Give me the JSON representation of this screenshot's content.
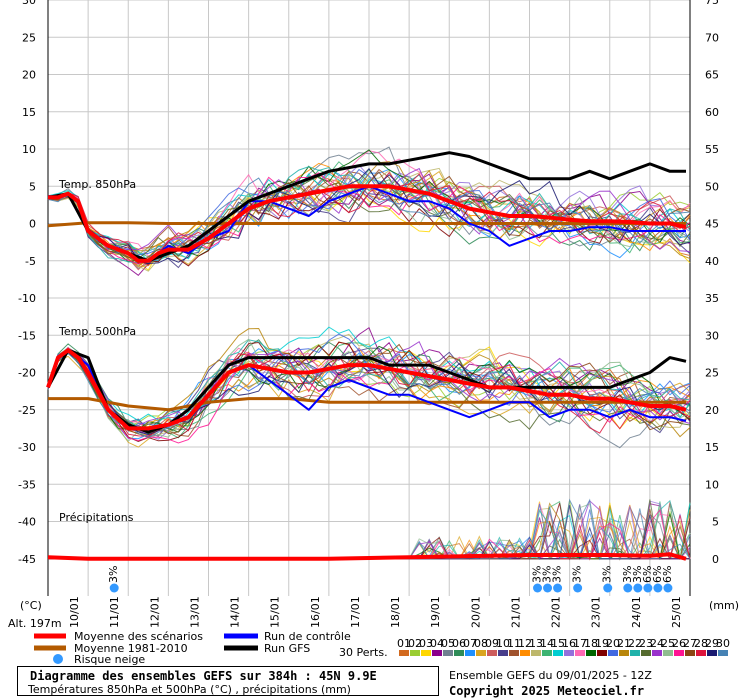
{
  "chart_data": {
    "type": "line",
    "title": "Diagramme des ensembles GEFS sur 384h : 45N 9.9E",
    "subtitle": "Températures 850hPa et 500hPa (°C) , précipitations (mm)",
    "left_axis": {
      "unit": "(°C)",
      "ticks": [
        30,
        25,
        20,
        15,
        10,
        5,
        0,
        -5,
        -10,
        -15,
        -20,
        -25,
        -30,
        -35,
        -40,
        -45
      ]
    },
    "right_axis": {
      "unit": "(mm)",
      "ticks": [
        75,
        70,
        65,
        60,
        55,
        50,
        45,
        40,
        35,
        30,
        25,
        20,
        15,
        10,
        5,
        0
      ]
    },
    "altitude": "Alt. 197m",
    "date_labels": [
      "10/01",
      "11/01",
      "12/01",
      "13/01",
      "14/01",
      "15/01",
      "16/01",
      "17/01",
      "18/01",
      "19/01",
      "20/01",
      "21/01",
      "22/01",
      "23/01",
      "24/01",
      "25/01"
    ],
    "panel_labels": {
      "t850": "Temp. 850hPa",
      "t500": "Temp. 500hPa",
      "precip": "Précipitations"
    },
    "snow_risk": [
      {
        "day": 1.65,
        "pct": "3%"
      },
      {
        "day": 12.2,
        "pct": "3%"
      },
      {
        "day": 12.45,
        "pct": "3%"
      },
      {
        "day": 12.7,
        "pct": "3%"
      },
      {
        "day": 13.2,
        "pct": "3%"
      },
      {
        "day": 13.95,
        "pct": "3%"
      },
      {
        "day": 14.45,
        "pct": "3%"
      },
      {
        "day": 14.7,
        "pct": "3%"
      },
      {
        "day": 14.95,
        "pct": "6%"
      },
      {
        "day": 15.2,
        "pct": "6%"
      },
      {
        "day": 15.45,
        "pct": "6%"
      }
    ],
    "series": [
      {
        "name": "Moyenne des scénarios",
        "color": "#ff0000",
        "panel": "t850",
        "x": [
          0,
          0.25,
          0.5,
          0.75,
          1,
          1.5,
          2,
          2.25,
          2.5,
          2.75,
          3,
          3.5,
          4,
          4.5,
          5,
          5.5,
          6,
          6.5,
          7,
          7.5,
          8,
          8.5,
          9,
          9.5,
          10,
          10.5,
          11,
          11.5,
          12,
          12.5,
          13,
          13.5,
          14,
          14.5,
          15,
          15.5,
          15.9
        ],
        "y": [
          3.5,
          3.5,
          4,
          3,
          -1,
          -3,
          -4,
          -5,
          -5,
          -4,
          -3.5,
          -3.5,
          -2,
          0,
          2,
          3,
          3.5,
          4,
          4.5,
          5,
          5,
          5,
          4.5,
          4,
          3,
          2,
          1.5,
          1,
          1,
          0.8,
          0.5,
          0.3,
          0.3,
          0.2,
          0,
          0,
          -0.5
        ]
      },
      {
        "name": "Moyenne 1981-2010",
        "color": "#b35a00",
        "panel": "t850",
        "x": [
          0,
          1,
          2,
          3,
          4,
          5,
          6,
          7,
          8,
          9,
          10,
          11,
          12,
          13,
          14,
          15,
          15.9
        ],
        "y": [
          -0.3,
          0.1,
          0.1,
          0,
          0,
          0,
          0,
          0,
          0,
          0,
          0,
          0,
          0,
          0,
          0,
          0,
          0
        ]
      },
      {
        "name": "Run de contrôle",
        "color": "#0000ff",
        "panel": "t850",
        "x": [
          0,
          0.5,
          1,
          1.5,
          2,
          2.5,
          3,
          3.5,
          4,
          4.5,
          5,
          5.5,
          6,
          6.5,
          7,
          7.5,
          8,
          8.5,
          9,
          9.5,
          10,
          10.5,
          11,
          11.5,
          12,
          12.5,
          13,
          13.5,
          14,
          14.5,
          15,
          15.5,
          15.9
        ],
        "y": [
          3.5,
          4,
          -1,
          -3,
          -4,
          -5,
          -3,
          -4,
          -2,
          -1,
          3,
          3,
          2,
          1,
          3,
          4,
          5,
          4,
          3,
          3,
          2,
          0,
          -1,
          -3,
          -2,
          -1,
          -1,
          -0.5,
          -0.5,
          -1,
          -1,
          -1,
          -1
        ]
      },
      {
        "name": "Run GFS",
        "color": "#000000",
        "panel": "t850",
        "x": [
          0,
          0.5,
          1,
          1.5,
          2,
          2.5,
          3,
          3.5,
          4,
          4.5,
          5,
          5.5,
          6,
          6.5,
          7,
          7.5,
          8,
          8.5,
          9,
          9.5,
          10,
          10.5,
          11,
          11.5,
          12,
          12.5,
          13,
          13.5,
          14,
          14.5,
          15,
          15.5,
          15.9
        ],
        "y": [
          3.5,
          4,
          -1,
          -3,
          -4,
          -5,
          -4,
          -3,
          -1,
          1,
          3,
          4,
          5,
          6,
          7,
          7.5,
          8,
          8,
          8.5,
          9,
          9.5,
          9,
          8,
          7,
          6,
          6,
          6,
          7,
          6,
          7,
          8,
          7,
          7
        ]
      },
      {
        "name": "Moyenne des scénarios",
        "color": "#ff0000",
        "panel": "t500",
        "x": [
          0,
          0.25,
          0.5,
          0.75,
          1,
          1.5,
          2,
          2.5,
          3,
          3.5,
          4,
          4.5,
          5,
          5.5,
          6,
          6.5,
          7,
          7.5,
          8,
          8.5,
          9,
          9.5,
          10,
          10.5,
          11,
          11.5,
          12,
          12.5,
          13,
          13.5,
          14,
          14.5,
          15,
          15.5,
          15.9
        ],
        "y": [
          -22,
          -18,
          -17,
          -18,
          -20,
          -25,
          -27.5,
          -27.5,
          -27,
          -26,
          -23,
          -20,
          -19,
          -19.5,
          -20,
          -20,
          -19.5,
          -19,
          -19,
          -19.5,
          -20,
          -20.5,
          -21,
          -21.5,
          -22,
          -22,
          -22.5,
          -23,
          -23,
          -23.5,
          -23.5,
          -24,
          -24.5,
          -24.5,
          -25
        ]
      },
      {
        "name": "Moyenne 1981-2010",
        "color": "#b35a00",
        "panel": "t500",
        "x": [
          0,
          1,
          2,
          3,
          4,
          5,
          6,
          7,
          8,
          9,
          10,
          11,
          12,
          13,
          14,
          15,
          15.9
        ],
        "y": [
          -23.5,
          -23.5,
          -24.5,
          -25,
          -24,
          -23.5,
          -23.5,
          -24,
          -24,
          -24,
          -24,
          -24,
          -24,
          -24,
          -24,
          -24,
          -24
        ]
      },
      {
        "name": "Run de contrôle",
        "color": "#0000ff",
        "panel": "t500",
        "x": [
          0,
          0.5,
          1,
          1.5,
          2,
          2.5,
          3,
          3.5,
          4,
          4.5,
          5,
          5.5,
          6,
          6.5,
          7,
          7.5,
          8,
          8.5,
          9,
          9.5,
          10,
          10.5,
          11,
          11.5,
          12,
          12.5,
          13,
          13.5,
          14,
          14.5,
          15,
          15.5,
          15.9
        ],
        "y": [
          -22,
          -17,
          -19,
          -25,
          -27,
          -28,
          -27,
          -26,
          -23,
          -20,
          -19,
          -21,
          -23,
          -25,
          -22,
          -21,
          -22,
          -23,
          -23,
          -24,
          -25,
          -26,
          -25,
          -24,
          -24,
          -26,
          -25,
          -25,
          -26,
          -25,
          -26,
          -26,
          -26.5
        ]
      },
      {
        "name": "Run GFS",
        "color": "#000000",
        "panel": "t500",
        "x": [
          0,
          0.5,
          1,
          1.5,
          2,
          2.5,
          3,
          3.5,
          4,
          4.5,
          5,
          5.5,
          6,
          6.5,
          7,
          7.5,
          8,
          8.5,
          9,
          9.5,
          10,
          10.5,
          11,
          11.5,
          12,
          12.5,
          13,
          13.5,
          14,
          14.5,
          15,
          15.5,
          15.9
        ],
        "y": [
          -22,
          -17,
          -18,
          -25,
          -27,
          -28,
          -27,
          -25,
          -22,
          -19,
          -18,
          -18,
          -18,
          -18,
          -18,
          -18,
          -18,
          -19,
          -19,
          -19,
          -20,
          -21,
          -22,
          -22,
          -22,
          -22,
          -22,
          -22,
          -22,
          -21,
          -20,
          -18,
          -18.5
        ]
      },
      {
        "name": "Moyenne des scénarios",
        "color": "#ff0000",
        "panel": "precip_mm",
        "x": [
          0,
          1,
          2,
          3,
          4,
          5,
          6,
          7,
          8,
          9,
          10,
          11,
          12,
          13,
          14,
          15,
          15.5,
          15.9
        ],
        "y": [
          0.2,
          0,
          0,
          0,
          0,
          0,
          0,
          0,
          0.1,
          0.2,
          0.3,
          0.4,
          0.5,
          0.5,
          0.5,
          0.4,
          0.6,
          0
        ]
      }
    ],
    "ensemble_members": {
      "count": 30,
      "label": "30 Perts.",
      "codes": [
        "01",
        "02",
        "03",
        "04",
        "05",
        "06",
        "07",
        "08",
        "09",
        "10",
        "11",
        "12",
        "13",
        "14",
        "15",
        "16",
        "17",
        "18",
        "19",
        "20",
        "21",
        "22",
        "23",
        "24",
        "25",
        "26",
        "27",
        "28",
        "29",
        "30"
      ],
      "colors": [
        "#d2691e",
        "#9acd32",
        "#ffd700",
        "#8b008b",
        "#708090",
        "#2e8b57",
        "#1e90ff",
        "#daa520",
        "#cd5c5c",
        "#483d8b",
        "#a0522d",
        "#ff8c00",
        "#bdb76b",
        "#3cb371",
        "#00ced1",
        "#9370db",
        "#ff69b4",
        "#006400",
        "#800000",
        "#4169e1",
        "#b8860b",
        "#20b2aa",
        "#556b2f",
        "#9932cc",
        "#8fbc8f",
        "#ff1493",
        "#8b4513",
        "#dc143c",
        "#191970",
        "#4682b4"
      ]
    },
    "xlim": [
      0,
      16
    ],
    "ylim_temp": [
      -50,
      30
    ],
    "ylim_precip_mm": [
      0,
      75
    ],
    "grid": true
  },
  "legend": {
    "mean": "Moyenne des scénarios",
    "clim": "Moyenne 1981-2010",
    "snow": "Risque neige",
    "control": "Run de contrôle",
    "gfs": "Run GFS",
    "mean_color": "#ff0000",
    "clim_color": "#b35a00",
    "control_color": "#0000ff",
    "gfs_color": "#000000",
    "snow_color": "#3399ff"
  },
  "footer": {
    "title": "Diagramme des ensembles GEFS sur 384h : 45N 9.9E",
    "subtitle": "Températures 850hPa et 500hPa (°C) , précipitations (mm)",
    "run_info": "Ensemble GEFS du 09/01/2025 - 12Z",
    "copyright": "Copyright 2025 Meteociel.fr"
  }
}
